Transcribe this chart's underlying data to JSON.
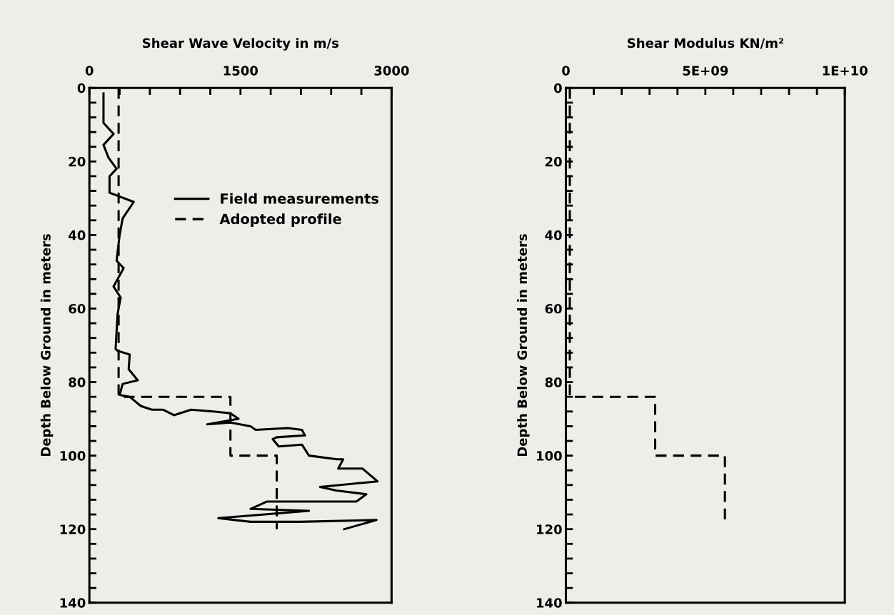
{
  "chart_data": [
    {
      "type": "line",
      "xlabel": "Shear Wave Velocity in m/s",
      "ylabel": "Depth Below Ground in meters",
      "xlim": [
        0,
        3000
      ],
      "ylim": [
        140,
        0
      ],
      "xticks": [
        0,
        {
          "value": 300,
          "label": null
        },
        {
          "value": 600,
          "label": null
        },
        {
          "value": 900,
          "label": null
        },
        {
          "value": 1200,
          "label": null
        },
        1500,
        {
          "value": 1800,
          "label": null
        },
        {
          "value": 2100,
          "label": null
        },
        {
          "value": 2400,
          "label": null
        },
        {
          "value": 2700,
          "label": null
        },
        3000
      ],
      "yticks": [
        0,
        {
          "value": 4,
          "label": null
        },
        {
          "value": 8,
          "label": null
        },
        {
          "value": 12,
          "label": null
        },
        {
          "value": 16,
          "label": null
        },
        20,
        {
          "value": 24,
          "label": null
        },
        {
          "value": 28,
          "label": null
        },
        {
          "value": 32,
          "label": null
        },
        {
          "value": 36,
          "label": null
        },
        40,
        {
          "value": 44,
          "label": null
        },
        {
          "value": 48,
          "label": null
        },
        {
          "value": 52,
          "label": null
        },
        {
          "value": 56,
          "label": null
        },
        60,
        {
          "value": 64,
          "label": null
        },
        {
          "value": 68,
          "label": null
        },
        {
          "value": 72,
          "label": null
        },
        {
          "value": 76,
          "label": null
        },
        80,
        {
          "value": 84,
          "label": null
        },
        {
          "value": 88,
          "label": null
        },
        {
          "value": 92,
          "label": null
        },
        {
          "value": 96,
          "label": null
        },
        100,
        {
          "value": 104,
          "label": null
        },
        {
          "value": 108,
          "label": null
        },
        {
          "value": 112,
          "label": null
        },
        {
          "value": 116,
          "label": null
        },
        120,
        {
          "value": 124,
          "label": null
        },
        {
          "value": 128,
          "label": null
        },
        {
          "value": 132,
          "label": null
        },
        {
          "value": 136,
          "label": null
        },
        140
      ],
      "grid": false,
      "legend": "top right",
      "marker": "none",
      "series": [
        {
          "name": "Field measurements",
          "color": "#000000",
          "line_style": "solid",
          "x": [
            140,
            140,
            240,
            140,
            190,
            270,
            200,
            200,
            440,
            330,
            300,
            270,
            340,
            240,
            310,
            280,
            260,
            280,
            400,
            390,
            480,
            330,
            300,
            400,
            510,
            620,
            730,
            840,
            1010,
            1230,
            1400,
            1480,
            1170,
            1400,
            1600,
            1650,
            1970,
            2110,
            2140,
            1860,
            1820,
            1880,
            2110,
            2180,
            2460,
            2520,
            2470,
            2710,
            2860,
            2290,
            2450,
            2750,
            2650,
            1760,
            1600,
            2180,
            1280,
            1600,
            2090,
            2850,
            2530
          ],
          "values": [
            1.5,
            9.5,
            12.5,
            15.5,
            19,
            22,
            24,
            28.5,
            31,
            35.5,
            40,
            47,
            49,
            54,
            57,
            61.5,
            71,
            71.5,
            72.5,
            76.5,
            79.5,
            80.5,
            83.5,
            84,
            86.5,
            87.5,
            87.5,
            89,
            87.5,
            88,
            88.5,
            90,
            91.5,
            91,
            92,
            93,
            92.5,
            93,
            94.5,
            95,
            95.5,
            97.5,
            97,
            100,
            101,
            101,
            103.5,
            103.5,
            107,
            108.5,
            109.5,
            110.5,
            112.5,
            112.5,
            114.5,
            115,
            117,
            118,
            118,
            117.5,
            120
          ]
        },
        {
          "name": "Adopted profile",
          "color": "#000000",
          "line_style": "dashed",
          "x": [
            290,
            290,
            1400,
            1400,
            1860,
            1860
          ],
          "values": [
            0,
            84,
            84,
            100,
            100,
            120
          ]
        }
      ]
    },
    {
      "type": "line",
      "xlabel": "Shear Modulus KN/m²",
      "ylabel": "Depth Below Ground in meters",
      "xlim": [
        0,
        10000000000
      ],
      "ylim": [
        140,
        0
      ],
      "xticks": [
        0,
        {
          "value": 1000000000,
          "label": null
        },
        {
          "value": 2000000000,
          "label": null
        },
        {
          "value": 3000000000,
          "label": null
        },
        {
          "value": 4000000000,
          "label": null
        },
        {
          "value": 5000000000,
          "label": "5E+09"
        },
        {
          "value": 6000000000,
          "label": null
        },
        {
          "value": 7000000000,
          "label": null
        },
        {
          "value": 8000000000,
          "label": null
        },
        {
          "value": 9000000000,
          "label": null
        },
        {
          "value": 10000000000,
          "label": "1E+10"
        }
      ],
      "yticks": [
        0,
        {
          "value": 4,
          "label": null
        },
        {
          "value": 8,
          "label": null
        },
        {
          "value": 12,
          "label": null
        },
        {
          "value": 16,
          "label": null
        },
        20,
        {
          "value": 24,
          "label": null
        },
        {
          "value": 28,
          "label": null
        },
        {
          "value": 32,
          "label": null
        },
        {
          "value": 36,
          "label": null
        },
        40,
        {
          "value": 44,
          "label": null
        },
        {
          "value": 48,
          "label": null
        },
        {
          "value": 52,
          "label": null
        },
        {
          "value": 56,
          "label": null
        },
        60,
        {
          "value": 64,
          "label": null
        },
        {
          "value": 68,
          "label": null
        },
        {
          "value": 72,
          "label": null
        },
        {
          "value": 76,
          "label": null
        },
        80,
        {
          "value": 84,
          "label": null
        },
        {
          "value": 88,
          "label": null
        },
        {
          "value": 92,
          "label": null
        },
        {
          "value": 96,
          "label": null
        },
        100,
        {
          "value": 104,
          "label": null
        },
        {
          "value": 108,
          "label": null
        },
        {
          "value": 112,
          "label": null
        },
        {
          "value": 116,
          "label": null
        },
        120,
        {
          "value": 124,
          "label": null
        },
        {
          "value": 128,
          "label": null
        },
        {
          "value": 132,
          "label": null
        },
        {
          "value": 136,
          "label": null
        },
        140
      ],
      "grid": false,
      "marker": "none",
      "series": [
        {
          "color": "#000000",
          "line_style": "dashed",
          "x": [
            140000000,
            140000000,
            3200000000,
            3200000000,
            5700000000,
            5700000000
          ],
          "values": [
            0,
            84,
            84,
            100,
            100,
            118
          ]
        }
      ]
    }
  ]
}
